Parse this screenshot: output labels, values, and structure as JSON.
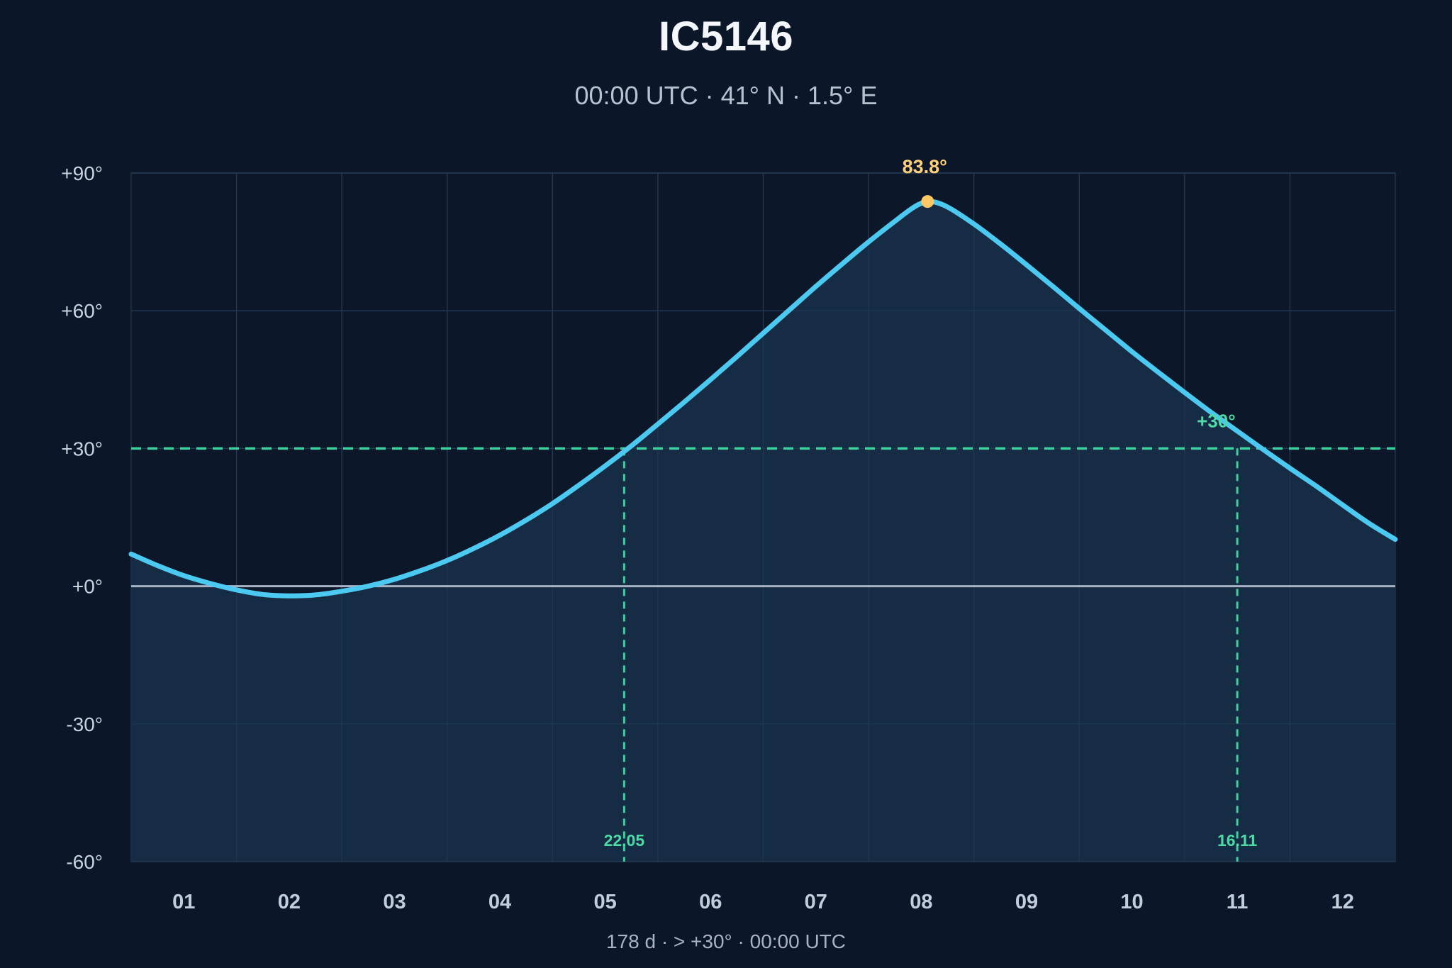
{
  "header": {
    "title": "IC5146",
    "subtitle": "00:00 UTC · 41° N · 1.5° E"
  },
  "footer": {
    "text": "178 d  ·  > +30°  ·  00:00 UTC"
  },
  "colors": {
    "background": "#0b1628",
    "plot_background": "#0c1729",
    "area_fill": "#172f47",
    "curve": "#4cc9f0",
    "threshold": "#3ecf9e",
    "peak": "#ffc864",
    "horizon": "#a7b3c4"
  },
  "chart_data": {
    "type": "area",
    "title": "IC5146",
    "subtitle": "00:00 UTC · 41° N · 1.5° E",
    "xlabel": "",
    "ylabel": "",
    "x_unit": "month",
    "xlim": [
      0.5,
      12.5
    ],
    "ylim": [
      -60,
      90
    ],
    "yticks": [
      90,
      60,
      30,
      0,
      -30,
      -60
    ],
    "ytick_labels": [
      "+90°",
      "+60°",
      "+30°",
      "+0°",
      "-30°",
      "-60°"
    ],
    "categories": [
      "01",
      "02",
      "03",
      "04",
      "05",
      "06",
      "07",
      "08",
      "09",
      "10",
      "11",
      "12"
    ],
    "grid": true,
    "series": [
      {
        "x": [
          0.5,
          0.75,
          1.0,
          1.25,
          1.5,
          1.75,
          2.0,
          2.25,
          2.5,
          2.75,
          3.0,
          3.25,
          3.5,
          3.75,
          4.0,
          4.25,
          4.5,
          4.75,
          5.0,
          5.25,
          5.5,
          5.75,
          6.0,
          6.25,
          6.5,
          6.75,
          7.0,
          7.25,
          7.5,
          7.75,
          7.9,
          8.0,
          8.1,
          8.25,
          8.5,
          8.75,
          9.0,
          9.25,
          9.5,
          9.75,
          10.0,
          10.25,
          10.5,
          10.75,
          11.0,
          11.25,
          11.5,
          11.75,
          12.0,
          12.25,
          12.5
        ],
        "y": [
          7.0,
          4.5,
          2.3,
          0.6,
          -0.8,
          -1.8,
          -2.1,
          -1.9,
          -1.1,
          0.0,
          1.5,
          3.4,
          5.6,
          8.2,
          11.1,
          14.4,
          18.0,
          22.0,
          26.2,
          30.6,
          35.3,
          40.1,
          45.0,
          50.0,
          55.1,
          60.2,
          65.3,
          70.2,
          75.0,
          79.5,
          82.1,
          83.4,
          83.8,
          82.6,
          78.9,
          74.6,
          70.0,
          65.3,
          60.5,
          55.8,
          51.1,
          46.6,
          42.2,
          37.9,
          33.8,
          29.7,
          25.7,
          21.8,
          17.7,
          13.7,
          10.2
        ]
      }
    ],
    "threshold": {
      "value": 30,
      "label": "+30°"
    },
    "crossings": [
      {
        "x": 5.18,
        "label": "22.05"
      },
      {
        "x": 11.0,
        "label": "16.11"
      }
    ],
    "peak": {
      "x": 8.06,
      "y": 83.8,
      "label": "83.8°"
    },
    "horizon": 0
  }
}
